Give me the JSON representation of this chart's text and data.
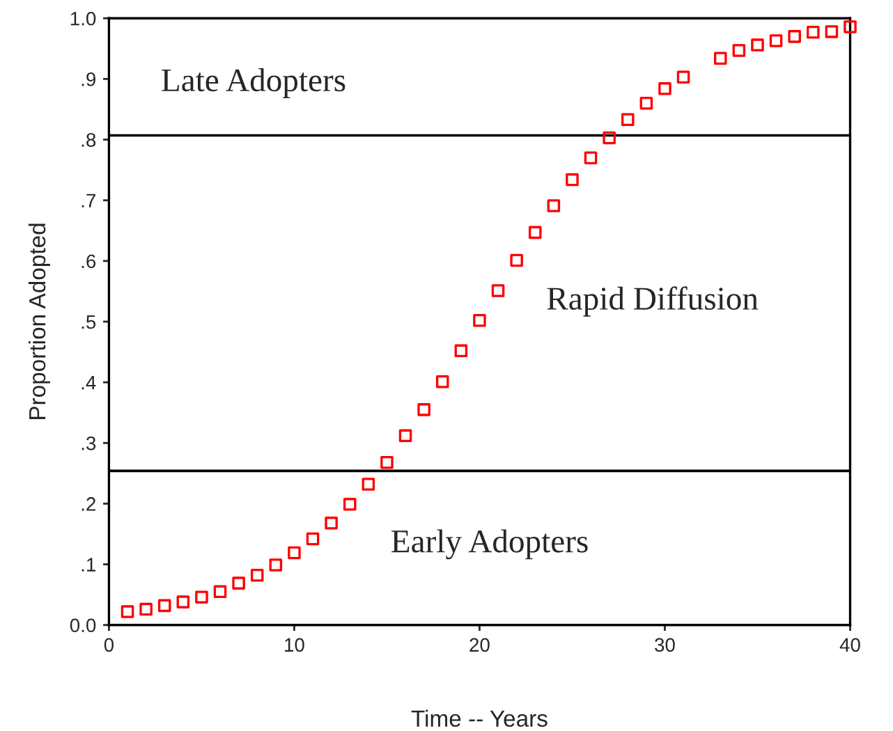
{
  "chart_data": {
    "type": "scatter",
    "xlabel": "Time -- Years",
    "ylabel": "Proportion Adopted",
    "x": [
      1,
      2,
      3,
      4,
      5,
      6,
      7,
      8,
      9,
      10,
      11,
      12,
      13,
      14,
      15,
      16,
      17,
      18,
      19,
      20,
      21,
      22,
      23,
      24,
      25,
      26,
      27,
      28,
      29,
      30,
      31,
      33,
      34,
      35,
      36,
      37,
      38,
      39,
      40
    ],
    "series": [
      {
        "color": "#ff0000",
        "values": [
          0.022,
          0.026,
          0.032,
          0.038,
          0.046,
          0.055,
          0.069,
          0.082,
          0.099,
          0.119,
          0.142,
          0.168,
          0.199,
          0.232,
          0.268,
          0.312,
          0.355,
          0.401,
          0.452,
          0.502,
          0.551,
          0.601,
          0.647,
          0.691,
          0.734,
          0.77,
          0.803,
          0.833,
          0.86,
          0.884,
          0.903,
          0.934,
          0.947,
          0.956,
          0.963,
          0.97,
          0.977,
          0.978,
          0.986
        ]
      }
    ],
    "marker": "square",
    "grid": false,
    "legend": false,
    "xlim": [
      0,
      40
    ],
    "xticks": [
      0,
      10,
      20,
      30,
      40
    ],
    "ylim": [
      0,
      1.0
    ],
    "yticks": [
      {
        "value": 0.0,
        "label": "0.0"
      },
      {
        "value": 0.1,
        "label": ".1"
      },
      {
        "value": 0.2,
        "label": ".2"
      },
      {
        "value": 0.3,
        "label": ".3"
      },
      {
        "value": 0.4,
        "label": ".4"
      },
      {
        "value": 0.5,
        "label": ".5"
      },
      {
        "value": 0.6,
        "label": ".6"
      },
      {
        "value": 0.7,
        "label": ".7"
      },
      {
        "value": 0.8,
        "label": ".8"
      },
      {
        "value": 0.9,
        "label": ".9"
      },
      {
        "value": 1.0,
        "label": "1.0"
      }
    ],
    "ref_lines": [
      {
        "axis": "y",
        "value": 0.807,
        "color": "#000000"
      },
      {
        "axis": "y",
        "value": 0.254,
        "color": "#000000"
      }
    ],
    "annotations": [
      "Late Adopters",
      "Rapid Diffusion",
      "Early Adopters"
    ]
  }
}
